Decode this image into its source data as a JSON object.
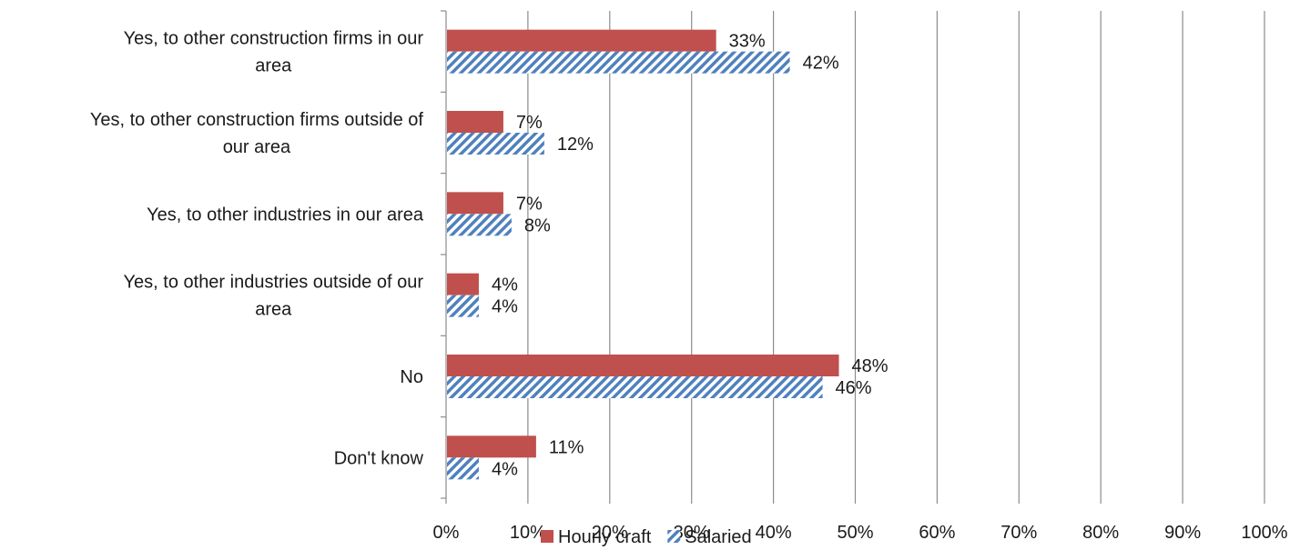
{
  "chart_data": {
    "type": "bar",
    "orientation": "horizontal",
    "categories": [
      [
        "Yes, to other construction firms in our",
        "area"
      ],
      [
        "Yes, to other construction firms outside of",
        "our area"
      ],
      [
        "Yes, to other industries in our area"
      ],
      [
        "Yes, to other industries outside of our",
        "area"
      ],
      [
        "No"
      ],
      [
        "Don't know"
      ]
    ],
    "series": [
      {
        "name": "Hourly craft",
        "color": "#c0504d",
        "pattern": "solid",
        "values": [
          33,
          7,
          7,
          4,
          48,
          11
        ],
        "labels": [
          "33%",
          "7%",
          "7%",
          "4%",
          "48%",
          "11%"
        ]
      },
      {
        "name": "Salaried",
        "color": "#4f81bd",
        "pattern": "diagonal-stripes",
        "values": [
          42,
          12,
          8,
          4,
          46,
          4
        ],
        "labels": [
          "42%",
          "12%",
          "8%",
          "4%",
          "46%",
          "4%"
        ]
      }
    ],
    "xlim": [
      0,
      100
    ],
    "xticks": [
      "0%",
      "10%",
      "20%",
      "30%",
      "40%",
      "50%",
      "60%",
      "70%",
      "80%",
      "90%",
      "100%"
    ],
    "grid": "vertical",
    "legend": "bottom",
    "title": "",
    "xlabel": "",
    "ylabel": ""
  }
}
